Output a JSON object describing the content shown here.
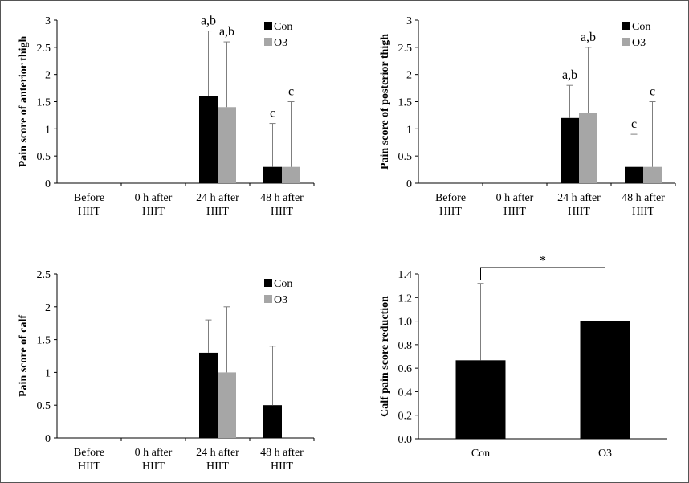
{
  "colors": {
    "con": "#000000",
    "o3": "#a6a6a6",
    "axis": "#000000",
    "errorbar": "#7f7f7f"
  },
  "chart_data": [
    {
      "type": "bar",
      "ylabel": "Pain score of anterior thigh",
      "ylim": [
        0,
        3
      ],
      "yticks": [
        "0",
        "0.5",
        "1",
        "1.5",
        "2",
        "2.5",
        "3"
      ],
      "categories": [
        [
          "Before",
          "HIIT"
        ],
        [
          "0 h after",
          "HIIT"
        ],
        [
          "24 h after",
          "HIIT"
        ],
        [
          "48 h after",
          "HIIT"
        ]
      ],
      "series": [
        {
          "name": "Con",
          "values": [
            0,
            0,
            1.6,
            0.3
          ],
          "errors": [
            0,
            0,
            1.2,
            0.8
          ],
          "labels": [
            "",
            "",
            "a,b",
            "c"
          ]
        },
        {
          "name": "O3",
          "values": [
            0,
            0,
            1.4,
            0.3
          ],
          "errors": [
            0,
            0,
            1.2,
            1.2
          ],
          "labels": [
            "",
            "",
            "a,b",
            "c"
          ]
        }
      ],
      "legend": "top-right"
    },
    {
      "type": "bar",
      "ylabel": "Pain score of posterior thigh",
      "ylim": [
        0,
        3
      ],
      "yticks": [
        "0",
        "0.5",
        "1",
        "1.5",
        "2",
        "2.5",
        "3"
      ],
      "categories": [
        [
          "Before",
          "HIIT"
        ],
        [
          "0 h after",
          "HIIT"
        ],
        [
          "24 h after",
          "HIIT"
        ],
        [
          "48 h after",
          "HIIT"
        ]
      ],
      "series": [
        {
          "name": "Con",
          "values": [
            0,
            0,
            1.2,
            0.3
          ],
          "errors": [
            0,
            0,
            0.6,
            0.6
          ],
          "labels": [
            "",
            "",
            "a,b",
            "c"
          ]
        },
        {
          "name": "O3",
          "values": [
            0,
            0,
            1.3,
            0.3
          ],
          "errors": [
            0,
            0,
            1.2,
            1.2
          ],
          "labels": [
            "",
            "",
            "a,b",
            "c"
          ]
        }
      ],
      "legend": "top-right"
    },
    {
      "type": "bar",
      "ylabel": "Pain score of calf",
      "ylim": [
        0,
        2.5
      ],
      "yticks": [
        "0",
        "0.5",
        "1",
        "1.5",
        "2",
        "2.5"
      ],
      "categories": [
        [
          "Before",
          "HIIT"
        ],
        [
          "0 h after",
          "HIIT"
        ],
        [
          "24 h after",
          "HIIT"
        ],
        [
          "48 h after",
          "HIIT"
        ]
      ],
      "series": [
        {
          "name": "Con",
          "values": [
            0,
            0,
            1.3,
            0.5
          ],
          "errors": [
            0,
            0,
            0.5,
            0.9
          ],
          "labels": [
            "",
            "",
            "",
            ""
          ]
        },
        {
          "name": "O3",
          "values": [
            0,
            0,
            1.0,
            0
          ],
          "errors": [
            0,
            0,
            1.0,
            0
          ],
          "labels": [
            "",
            "",
            "",
            ""
          ]
        }
      ],
      "legend": "top-right"
    },
    {
      "type": "bar",
      "ylabel": "Calf pain score reduction",
      "ylim": [
        0,
        1.4
      ],
      "yticks": [
        "0.0",
        "0.2",
        "0.4",
        "0.6",
        "0.8",
        "1.0",
        "1.2",
        "1.4"
      ],
      "categories": [
        [
          "Con"
        ],
        [
          "O3"
        ]
      ],
      "series": [
        {
          "values": [
            0.667,
            1.0
          ],
          "errors": [
            0.653,
            0
          ],
          "labels": [
            "",
            ""
          ]
        }
      ],
      "significance": "*"
    }
  ]
}
